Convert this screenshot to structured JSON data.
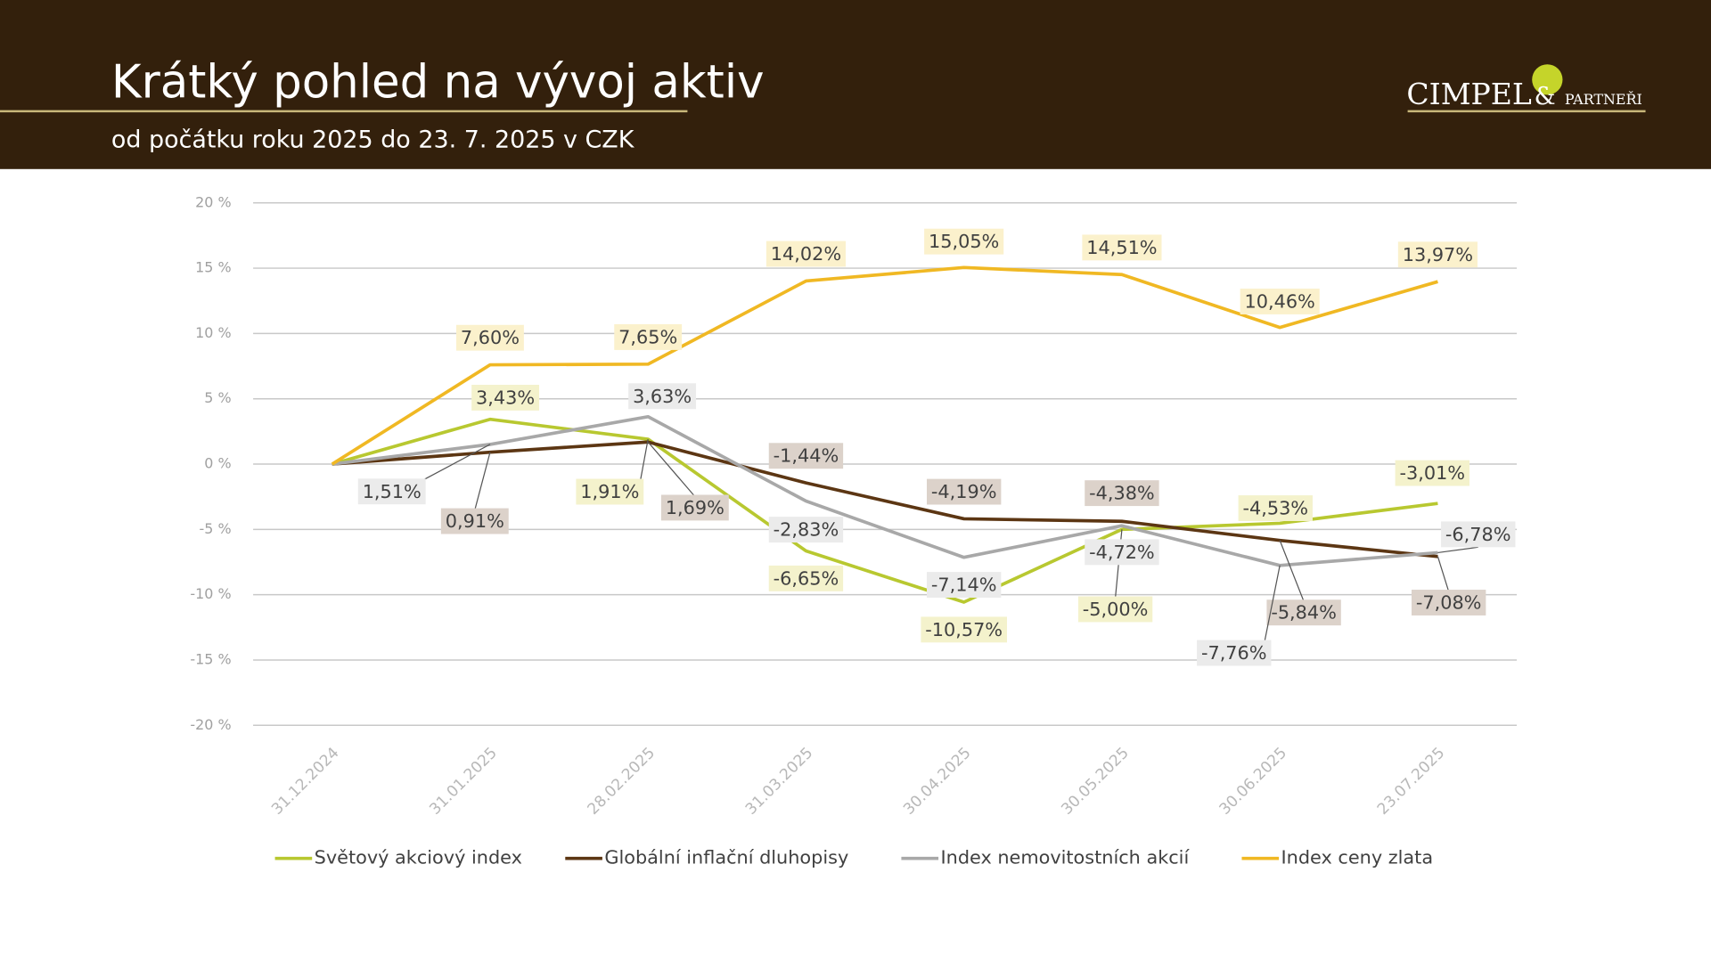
{
  "header": {
    "logo": [
      "CIMPEL",
      "&",
      "PARTNEŘI"
    ]
  },
  "chart_data": {
    "type": "line",
    "title": "Krátký pohled na vývoj aktiv",
    "subtitle": "od počátku roku 2025 do 23. 7. 2025 v CZK",
    "categories": [
      "31.12.2024",
      "31.01.2025",
      "28.02.2025",
      "31.03.2025",
      "30.04.2025",
      "30.05.2025",
      "30.06.2025",
      "23.07.2025"
    ],
    "ylim": [
      -20,
      20
    ],
    "yticks": [
      {
        "value": -20,
        "label": "-20 %"
      },
      {
        "value": -15,
        "label": "-15 %"
      },
      {
        "value": -10,
        "label": "-10 %"
      },
      {
        "value": -5,
        "label": "-5 %"
      },
      {
        "value": 0,
        "label": "0 %"
      },
      {
        "value": 5,
        "label": "5 %"
      },
      {
        "value": 10,
        "label": "10 %"
      },
      {
        "value": 15,
        "label": "15 %"
      },
      {
        "value": 20,
        "label": "20 %"
      }
    ],
    "grid": true,
    "legend": "bottom",
    "series": [
      {
        "name": "Světový akciový index",
        "color": "#b8c830",
        "label_background": "#f4f2cc",
        "values": [
          0,
          3.43,
          1.91,
          -6.65,
          -10.57,
          -5.0,
          -4.53,
          -3.01
        ],
        "value_labels": [
          null,
          "3,43%",
          "1,91%",
          "-6,65%",
          "-10,57%",
          "-5,00%",
          "-4,53%",
          "-3,01%"
        ]
      },
      {
        "name": "Globální inflační dluhopisy",
        "color": "#5c3613",
        "label_background": "#dcd2ca",
        "values": [
          0,
          0.91,
          1.69,
          -1.44,
          -4.19,
          -4.38,
          -5.84,
          -7.08
        ],
        "value_labels": [
          null,
          "0,91%",
          "1,69%",
          "-1,44%",
          "-4,19%",
          "-4,38%",
          "-5,84%",
          "-7,08%"
        ]
      },
      {
        "name": "Index nemovitostních akcií",
        "color": "#a8a8a8",
        "label_background": "#ebebeb",
        "values": [
          0,
          1.51,
          3.63,
          -2.83,
          -7.14,
          -4.72,
          -7.76,
          -6.78
        ],
        "value_labels": [
          null,
          "1,51%",
          "3,63%",
          "-2,83%",
          "-7,14%",
          "-4,72%",
          "-7,76%",
          "-6,78%"
        ]
      },
      {
        "name": "Index ceny zlata",
        "color": "#f0b823",
        "label_background": "#fbf1cc",
        "values": [
          0,
          7.6,
          7.65,
          14.02,
          15.05,
          14.51,
          10.46,
          13.97
        ],
        "value_labels": [
          null,
          "7,60%",
          "7,65%",
          "14,02%",
          "15,05%",
          "14,51%",
          "10,46%",
          "13,97%"
        ]
      }
    ]
  }
}
